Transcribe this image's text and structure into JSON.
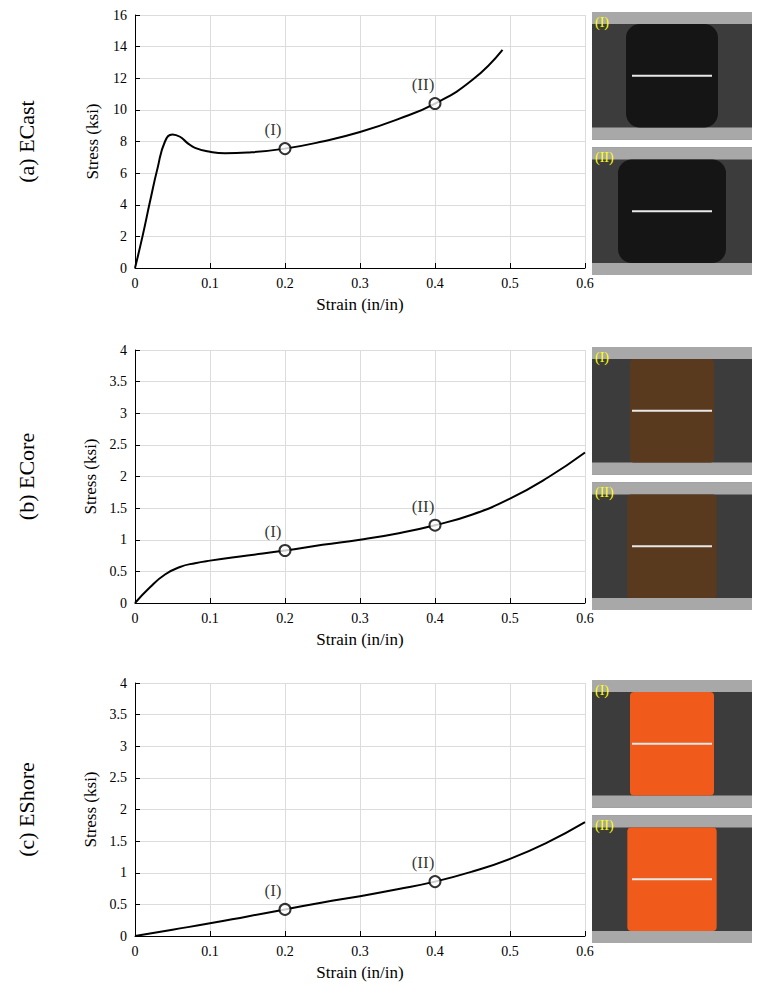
{
  "chart_data": [
    {
      "type": "line",
      "title": "(a) ECast",
      "x_label": "Strain (in/in)",
      "y_label": "Stress (ksi)",
      "xlim": [
        0,
        0.6
      ],
      "xticks": [
        0,
        0.1,
        0.2,
        0.3,
        0.4,
        0.5,
        0.6
      ],
      "ylim": [
        0,
        16
      ],
      "yticks": [
        0,
        2,
        4,
        6,
        8,
        10,
        12,
        14,
        16
      ],
      "grid": true,
      "series": [
        {
          "color": "#000000",
          "line_style": "solid",
          "x": [
            0,
            0.01,
            0.02,
            0.03,
            0.04,
            0.05,
            0.06,
            0.07,
            0.08,
            0.1,
            0.12,
            0.15,
            0.2,
            0.25,
            0.3,
            0.35,
            0.4,
            0.45,
            0.49
          ],
          "values": [
            0,
            2,
            4.2,
            6.3,
            8.0,
            8.45,
            8.3,
            7.9,
            7.6,
            7.35,
            7.25,
            7.3,
            7.55,
            8.0,
            8.6,
            9.4,
            10.4,
            11.9,
            13.8
          ]
        }
      ],
      "annotations": [
        {
          "x": 0.2,
          "y": 7.55,
          "text": "(I)",
          "marker": "circle"
        },
        {
          "x": 0.4,
          "y": 10.4,
          "text": "(II)",
          "marker": "circle"
        }
      ],
      "photos": [
        "(I)",
        "(II)"
      ]
    },
    {
      "type": "line",
      "title": "(b) ECore",
      "x_label": "Strain (in/in)",
      "y_label": "Stress (ksi)",
      "xlim": [
        0,
        0.6
      ],
      "xticks": [
        0,
        0.1,
        0.2,
        0.3,
        0.4,
        0.5,
        0.6
      ],
      "ylim": [
        0,
        4
      ],
      "yticks": [
        0,
        0.5,
        1,
        1.5,
        2,
        2.5,
        3,
        3.5,
        4
      ],
      "grid": true,
      "series": [
        {
          "color": "#000000",
          "line_style": "solid",
          "x": [
            0,
            0.02,
            0.04,
            0.06,
            0.08,
            0.1,
            0.15,
            0.2,
            0.25,
            0.3,
            0.35,
            0.4,
            0.45,
            0.5,
            0.55,
            0.6
          ],
          "values": [
            0,
            0.25,
            0.45,
            0.57,
            0.63,
            0.67,
            0.75,
            0.83,
            0.92,
            1.0,
            1.1,
            1.23,
            1.4,
            1.65,
            1.98,
            2.38
          ]
        }
      ],
      "annotations": [
        {
          "x": 0.2,
          "y": 0.83,
          "text": "(I)",
          "marker": "circle"
        },
        {
          "x": 0.4,
          "y": 1.23,
          "text": "(II)",
          "marker": "circle"
        }
      ],
      "photos": [
        "(I)",
        "(II)"
      ]
    },
    {
      "type": "line",
      "title": "(c) EShore",
      "x_label": "Strain (in/in)",
      "y_label": "Stress (ksi)",
      "xlim": [
        0,
        0.6
      ],
      "xticks": [
        0,
        0.1,
        0.2,
        0.3,
        0.4,
        0.5,
        0.6
      ],
      "ylim": [
        0,
        4
      ],
      "yticks": [
        0,
        0.5,
        1,
        1.5,
        2,
        2.5,
        3,
        3.5,
        4
      ],
      "grid": true,
      "series": [
        {
          "color": "#000000",
          "line_style": "solid",
          "x": [
            0,
            0.05,
            0.1,
            0.15,
            0.2,
            0.25,
            0.3,
            0.35,
            0.4,
            0.45,
            0.5,
            0.55,
            0.6
          ],
          "values": [
            0,
            0.1,
            0.2,
            0.31,
            0.42,
            0.53,
            0.63,
            0.74,
            0.86,
            1.02,
            1.22,
            1.48,
            1.8
          ]
        }
      ],
      "annotations": [
        {
          "x": 0.2,
          "y": 0.42,
          "text": "(I)",
          "marker": "circle"
        },
        {
          "x": 0.4,
          "y": 0.86,
          "text": "(II)",
          "marker": "circle"
        }
      ],
      "photos": [
        "(I)",
        "(II)"
      ]
    }
  ]
}
